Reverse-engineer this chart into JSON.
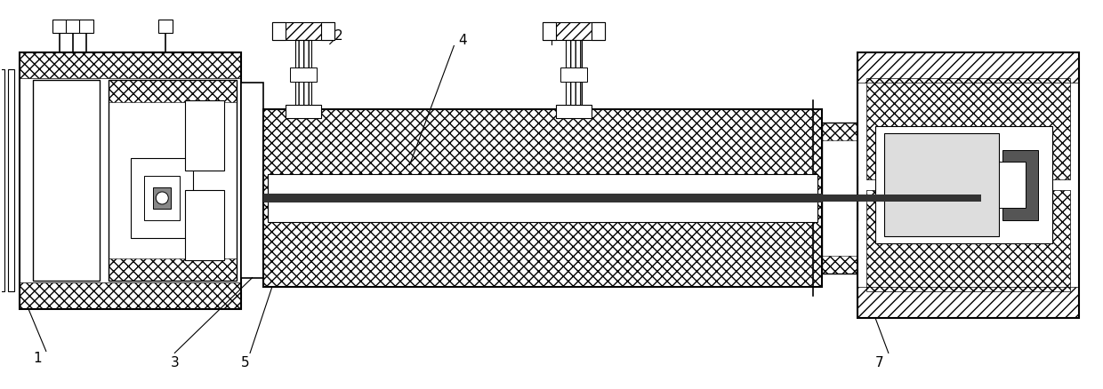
{
  "bg_color": "#ffffff",
  "fig_width": 12.4,
  "fig_height": 4.39,
  "dpi": 100
}
